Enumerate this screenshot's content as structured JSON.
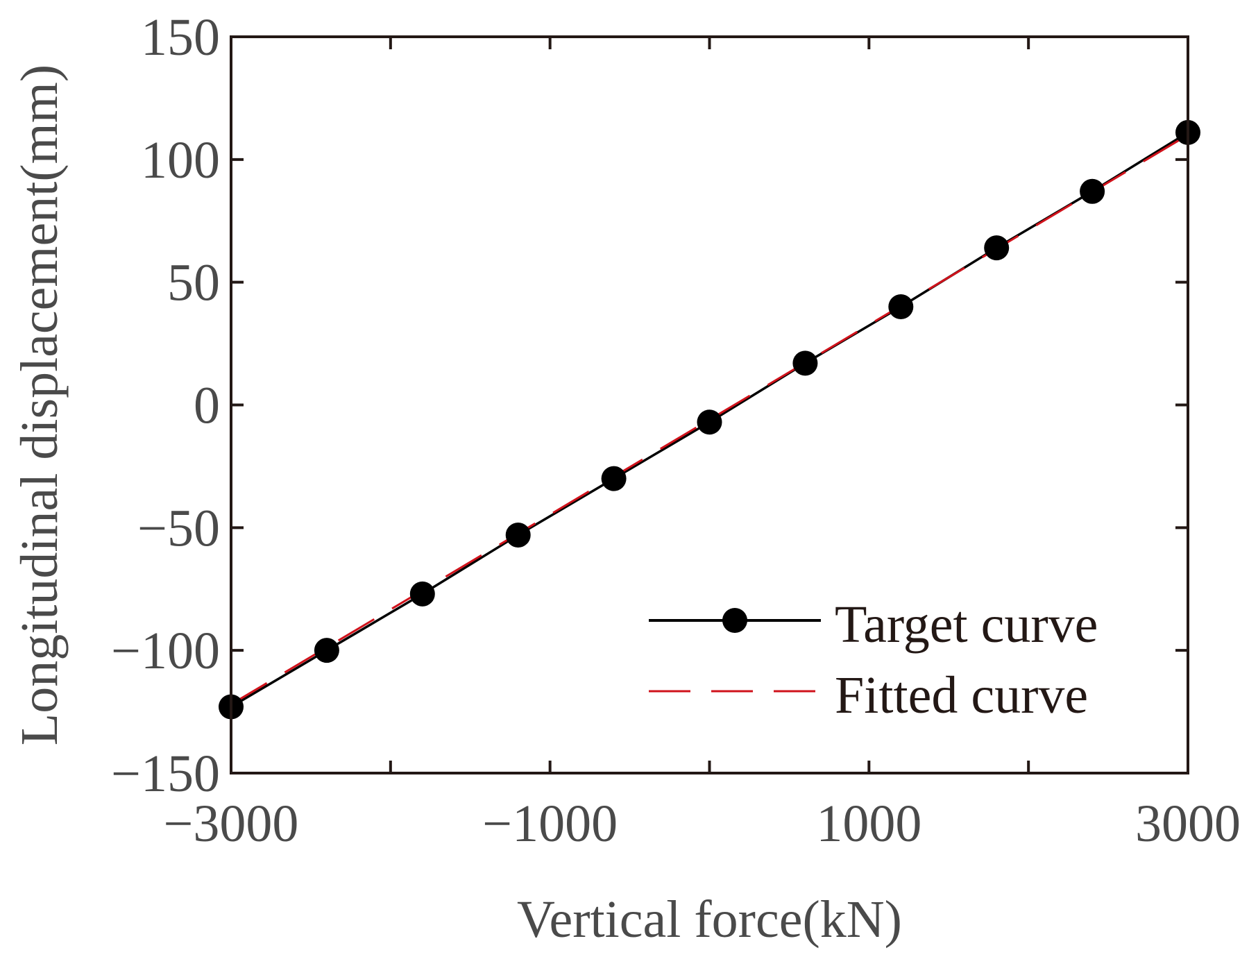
{
  "chart_data": {
    "type": "line",
    "title": "",
    "xlabel": "Vertical force(kN)",
    "ylabel": "Longitudinal displacement(mm)",
    "xlim": [
      -3000,
      3000
    ],
    "ylim": [
      -150,
      150
    ],
    "x_ticks": [
      -3000,
      -1000,
      1000,
      3000
    ],
    "x_tick_labels": [
      "−3000",
      "−1000",
      "1000",
      "3000"
    ],
    "y_ticks": [
      -150,
      -100,
      -50,
      0,
      50,
      100,
      150
    ],
    "y_tick_labels": [
      "−150",
      "−100",
      "−50",
      "0",
      "50",
      "100",
      "150"
    ],
    "grid": false,
    "legend_position": "bottom-right",
    "series": [
      {
        "name": "Target curve",
        "color": "#000000",
        "style": "solid",
        "marker": "circle",
        "x": [
          -3000,
          -2400,
          -1800,
          -1200,
          -600,
          0,
          600,
          1200,
          1800,
          2400,
          3000
        ],
        "y": [
          -123,
          -100,
          -77,
          -53,
          -30,
          -7,
          17,
          40,
          64,
          87,
          111
        ]
      },
      {
        "name": "Fitted curve",
        "color": "#d0121b",
        "style": "dashed",
        "x": [
          -3000,
          3000
        ],
        "y": [
          -122,
          110
        ]
      }
    ]
  }
}
